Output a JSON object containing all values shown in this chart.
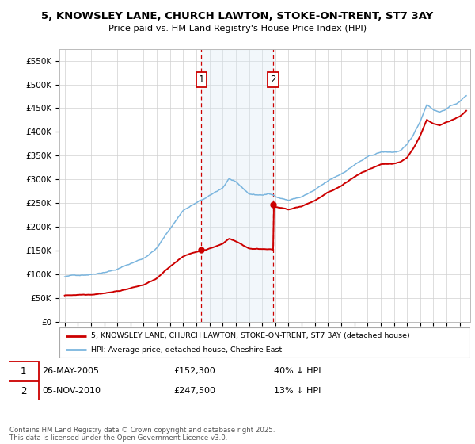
{
  "title": "5, KNOWSLEY LANE, CHURCH LAWTON, STOKE-ON-TRENT, ST7 3AY",
  "subtitle": "Price paid vs. HM Land Registry's House Price Index (HPI)",
  "ylim": [
    0,
    575000
  ],
  "yticks": [
    0,
    50000,
    100000,
    150000,
    200000,
    250000,
    300000,
    350000,
    400000,
    450000,
    500000,
    550000
  ],
  "ytick_labels": [
    "£0",
    "£50K",
    "£100K",
    "£150K",
    "£200K",
    "£250K",
    "£300K",
    "£350K",
    "£400K",
    "£450K",
    "£500K",
    "£550K"
  ],
  "hpi_color": "#7ab5de",
  "price_color": "#cc0000",
  "purchase1_date": 2005.39,
  "purchase1_price": 152300,
  "purchase2_date": 2010.84,
  "purchase2_price": 247500,
  "legend_line1": "5, KNOWSLEY LANE, CHURCH LAWTON, STOKE-ON-TRENT, ST7 3AY (detached house)",
  "legend_line2": "HPI: Average price, detached house, Cheshire East",
  "annotation1_date": "26-MAY-2005",
  "annotation1_price": "£152,300",
  "annotation1_pct": "40% ↓ HPI",
  "annotation2_date": "05-NOV-2010",
  "annotation2_price": "£247,500",
  "annotation2_pct": "13% ↓ HPI",
  "footer": "Contains HM Land Registry data © Crown copyright and database right 2025.\nThis data is licensed under the Open Government Licence v3.0.",
  "bg_color": "#ffffff",
  "grid_color": "#d0d0d0",
  "shade_color": "#daeaf5"
}
